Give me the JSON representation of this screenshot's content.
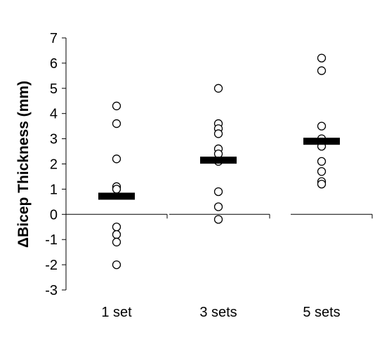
{
  "chart_data": {
    "type": "scatter",
    "title": "",
    "xlabel": "",
    "ylabel": "ΔBicep Thickness (mm)",
    "ylim": [
      -3,
      7
    ],
    "yticks": [
      -3,
      -2,
      -1,
      0,
      1,
      2,
      3,
      4,
      5,
      6,
      7
    ],
    "categories": [
      "1 set",
      "3 sets",
      "5 sets"
    ],
    "grid": false,
    "marker": "open-circle",
    "mean_marker": "horizontal-bar",
    "series": [
      {
        "category": "1 set",
        "mean": 0.72,
        "points": [
          4.3,
          3.6,
          2.2,
          1.1,
          1.0,
          -0.5,
          -0.8,
          -1.1,
          -2.0
        ]
      },
      {
        "category": "3 sets",
        "mean": 2.15,
        "points": [
          5.0,
          3.6,
          3.4,
          3.2,
          2.6,
          2.4,
          2.1,
          0.9,
          0.3,
          -0.2
        ]
      },
      {
        "category": "5 sets",
        "mean": 2.9,
        "points": [
          6.2,
          5.7,
          3.5,
          3.0,
          2.7,
          2.1,
          1.7,
          1.3,
          1.2
        ]
      }
    ],
    "colors": {
      "marker_stroke": "#000000",
      "marker_fill": "#ffffff",
      "mean_bar": "#000000",
      "axis": "#000000"
    }
  }
}
